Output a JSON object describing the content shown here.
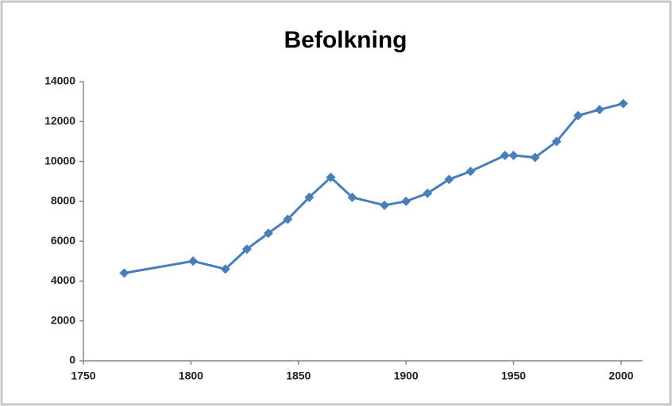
{
  "chart_data": {
    "type": "line",
    "title": "Befolkning",
    "x": [
      1769,
      1801,
      1816,
      1826,
      1836,
      1845,
      1855,
      1865,
      1875,
      1890,
      1900,
      1910,
      1920,
      1930,
      1946,
      1950,
      1960,
      1970,
      1980,
      1990,
      2001
    ],
    "series": [
      {
        "color": "#4a7ebb",
        "values": [
          4400,
          5000,
          4600,
          5600,
          6400,
          7100,
          8200,
          9200,
          8200,
          7800,
          8000,
          8400,
          9100,
          9500,
          10300,
          10300,
          10200,
          11000,
          12300,
          12600,
          12900
        ]
      }
    ],
    "xlim": [
      1750,
      2010
    ],
    "xticks": [
      1750,
      1800,
      1850,
      1900,
      1950,
      2000
    ],
    "ylim": [
      0,
      14000
    ],
    "yticks": [
      0,
      2000,
      4000,
      6000,
      8000,
      10000,
      12000,
      14000
    ],
    "grid": false
  }
}
